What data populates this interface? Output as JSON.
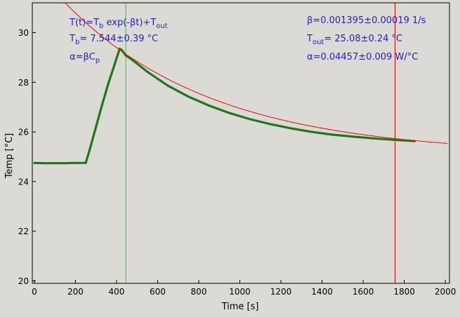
{
  "chart_data": {
    "type": "line",
    "xlabel": "Time [s]",
    "ylabel": "Temp [°C]",
    "xlim": [
      -10,
      2020
    ],
    "ylim": [
      19.9,
      31.2
    ],
    "xticks": [
      0,
      200,
      400,
      600,
      800,
      1000,
      1200,
      1400,
      1600,
      1800,
      2000
    ],
    "yticks": [
      20,
      22,
      24,
      26,
      28,
      30
    ],
    "tick_labels_x": [
      "0",
      "200",
      "400",
      "600",
      "800",
      "1000",
      "1200",
      "1400",
      "1600",
      "1800",
      "2000"
    ],
    "tick_labels_y": [
      "20",
      "22",
      "24",
      "26",
      "28",
      "30"
    ],
    "grid": false,
    "colors": {
      "data": "#1a7a1a",
      "fit": "#ff0000",
      "fit_start_marker": "#33cc33",
      "fit_end_marker": "#dd0000",
      "annotation_text": "#2222cc",
      "plot_bg": "#dcdad5"
    },
    "vlines": [
      {
        "x": 445,
        "color": "#33cc33"
      },
      {
        "x": 1755,
        "color": "#dd0000"
      }
    ],
    "fit": {
      "model": "T(t)=Tb exp(-βt)+Tout",
      "beta": 0.001395,
      "Tb": 7.544,
      "Tout": 25.08,
      "x_from": 140,
      "x_to": 2010
    },
    "series": [
      {
        "style": "thick-line",
        "x": [
          0,
          50,
          100,
          150,
          200,
          250,
          270,
          300,
          330,
          360,
          390,
          415,
          425,
          445,
          480,
          550,
          650,
          750,
          850,
          950,
          1050,
          1150,
          1250,
          1350,
          1450,
          1550,
          1650,
          1750,
          1850
        ],
        "y": [
          24.75,
          24.74,
          24.74,
          24.74,
          24.75,
          24.75,
          25.3,
          26.2,
          27.1,
          27.95,
          28.7,
          29.35,
          29.3,
          29.08,
          28.88,
          28.42,
          27.86,
          27.42,
          27.06,
          26.76,
          26.51,
          26.31,
          26.14,
          26.0,
          25.89,
          25.81,
          25.74,
          25.68,
          25.63
        ]
      }
    ],
    "annotations": [
      {
        "id": "model",
        "parts": [
          [
            "T(t)=T",
            ""
          ],
          [
            "b",
            "sub"
          ],
          [
            " exp(-βt)+T",
            ""
          ],
          [
            "out",
            "sub"
          ]
        ]
      },
      {
        "id": "tb",
        "parts": [
          [
            "T",
            ""
          ],
          [
            "b",
            "sub"
          ],
          [
            "= 7.544±0.39 °C",
            ""
          ]
        ]
      },
      {
        "id": "alpha-def",
        "parts": [
          [
            "α=βC",
            ""
          ],
          [
            "p",
            "sub"
          ]
        ]
      },
      {
        "id": "beta",
        "parts": [
          [
            "β=0.001395±0.00019 1/s",
            ""
          ]
        ]
      },
      {
        "id": "tout",
        "parts": [
          [
            "T",
            ""
          ],
          [
            "out",
            "sub"
          ],
          [
            "= 25.08±0.24 °C",
            ""
          ]
        ]
      },
      {
        "id": "alpha-val",
        "parts": [
          [
            "α=0.04457±0.009 W/°C",
            ""
          ]
        ]
      }
    ]
  }
}
